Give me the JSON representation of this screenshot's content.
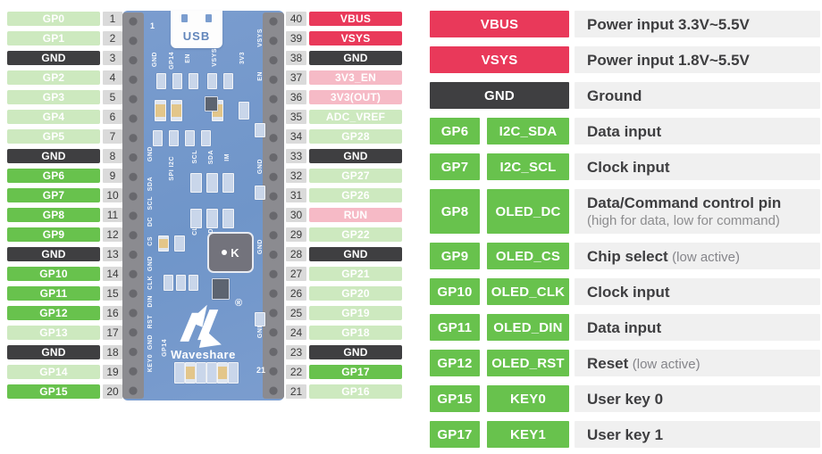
{
  "colors": {
    "bright_green": "#68c24d",
    "light_green": "#cde9bf",
    "red": "#e9395a",
    "pink": "#f6bac6",
    "dark_gray": "#3f3f41",
    "number_box_bg": "#dadada",
    "description_bg": "#f0f0f0",
    "board_blue": "#7b9dcf"
  },
  "left_pins": [
    {
      "num": 1,
      "label": "GP0",
      "type": "green-light"
    },
    {
      "num": 2,
      "label": "GP1",
      "type": "green-light"
    },
    {
      "num": 3,
      "label": "GND",
      "type": "dark"
    },
    {
      "num": 4,
      "label": "GP2",
      "type": "green-light"
    },
    {
      "num": 5,
      "label": "GP3",
      "type": "green-light"
    },
    {
      "num": 6,
      "label": "GP4",
      "type": "green-light"
    },
    {
      "num": 7,
      "label": "GP5",
      "type": "green-light"
    },
    {
      "num": 8,
      "label": "GND",
      "type": "dark"
    },
    {
      "num": 9,
      "label": "GP6",
      "type": "green"
    },
    {
      "num": 10,
      "label": "GP7",
      "type": "green"
    },
    {
      "num": 11,
      "label": "GP8",
      "type": "green"
    },
    {
      "num": 12,
      "label": "GP9",
      "type": "green"
    },
    {
      "num": 13,
      "label": "GND",
      "type": "dark"
    },
    {
      "num": 14,
      "label": "GP10",
      "type": "green"
    },
    {
      "num": 15,
      "label": "GP11",
      "type": "green"
    },
    {
      "num": 16,
      "label": "GP12",
      "type": "green"
    },
    {
      "num": 17,
      "label": "GP13",
      "type": "green-light"
    },
    {
      "num": 18,
      "label": "GND",
      "type": "dark"
    },
    {
      "num": 19,
      "label": "GP14",
      "type": "green-light"
    },
    {
      "num": 20,
      "label": "GP15",
      "type": "green"
    }
  ],
  "right_pins": [
    {
      "num": 40,
      "label": "VBUS",
      "type": "red"
    },
    {
      "num": 39,
      "label": "VSYS",
      "type": "red"
    },
    {
      "num": 38,
      "label": "GND",
      "type": "dark"
    },
    {
      "num": 37,
      "label": "3V3_EN",
      "type": "pink"
    },
    {
      "num": 36,
      "label": "3V3(OUT)",
      "type": "pink"
    },
    {
      "num": 35,
      "label": "ADC_VREF",
      "type": "green-light"
    },
    {
      "num": 34,
      "label": "GP28",
      "type": "green-light"
    },
    {
      "num": 33,
      "label": "GND",
      "type": "dark"
    },
    {
      "num": 32,
      "label": "GP27",
      "type": "green-light"
    },
    {
      "num": 31,
      "label": "GP26",
      "type": "green-light"
    },
    {
      "num": 30,
      "label": "RUN",
      "type": "pink"
    },
    {
      "num": 29,
      "label": "GP22",
      "type": "green-light"
    },
    {
      "num": 28,
      "label": "GND",
      "type": "dark"
    },
    {
      "num": 27,
      "label": "GP21",
      "type": "green-light"
    },
    {
      "num": 26,
      "label": "GP20",
      "type": "green-light"
    },
    {
      "num": 25,
      "label": "GP19",
      "type": "green-light"
    },
    {
      "num": 24,
      "label": "GP18",
      "type": "green-light"
    },
    {
      "num": 23,
      "label": "GND",
      "type": "dark"
    },
    {
      "num": 22,
      "label": "GP17",
      "type": "green"
    },
    {
      "num": 21,
      "label": "GP16",
      "type": "green-light"
    }
  ],
  "legend": [
    {
      "pin": "VBUS",
      "type": "red",
      "wide": true,
      "desc": "Power input 3.3V~5.5V"
    },
    {
      "pin": "VSYS",
      "type": "red",
      "wide": true,
      "desc": "Power input 1.8V~5.5V"
    },
    {
      "pin": "GND",
      "type": "dark",
      "wide": true,
      "desc": "Ground"
    },
    {
      "pin": "GP6",
      "func": "I2C_SDA",
      "desc": "Data input"
    },
    {
      "pin": "GP7",
      "func": "I2C_SCL",
      "desc": "Clock input"
    },
    {
      "pin": "GP8",
      "func": "OLED_DC",
      "desc": "Data/Command control pin",
      "desc2": "(high for data, low for command)"
    },
    {
      "pin": "GP9",
      "func": "OLED_CS",
      "desc": "Chip select",
      "desc_light": "(low active)"
    },
    {
      "pin": "GP10",
      "func": "OLED_CLK",
      "desc": "Clock input"
    },
    {
      "pin": "GP11",
      "func": "OLED_DIN",
      "desc": "Data input"
    },
    {
      "pin": "GP12",
      "func": "OLED_RST",
      "desc": "Reset",
      "desc_light": "(low active)"
    },
    {
      "pin": "GP15",
      "func": "KEY0",
      "desc": "User key 0"
    },
    {
      "pin": "GP17",
      "func": "KEY1",
      "desc": "User key 1"
    }
  ],
  "board": {
    "usb_label": "USB",
    "brand": "Waveshare",
    "chip_mark": "K",
    "pin1_mark": "1",
    "pin21_mark": "21",
    "silk_top": [
      "GND",
      "GP14",
      "EN",
      "VSYS",
      "3V3"
    ],
    "silk_left": [
      "GND",
      "SDA",
      "SCL",
      "DC",
      "CS",
      "GND",
      "CLK",
      "DIN",
      "RST",
      "GND",
      "KEY0",
      "GP14"
    ],
    "silk_right": [
      "VSYS",
      "EN",
      "GND",
      "GND",
      "GND"
    ],
    "silk_middle": [
      "SPI I2C",
      "SCL",
      "SDA",
      "IM",
      "CLK",
      "DIN",
      "IM"
    ]
  }
}
